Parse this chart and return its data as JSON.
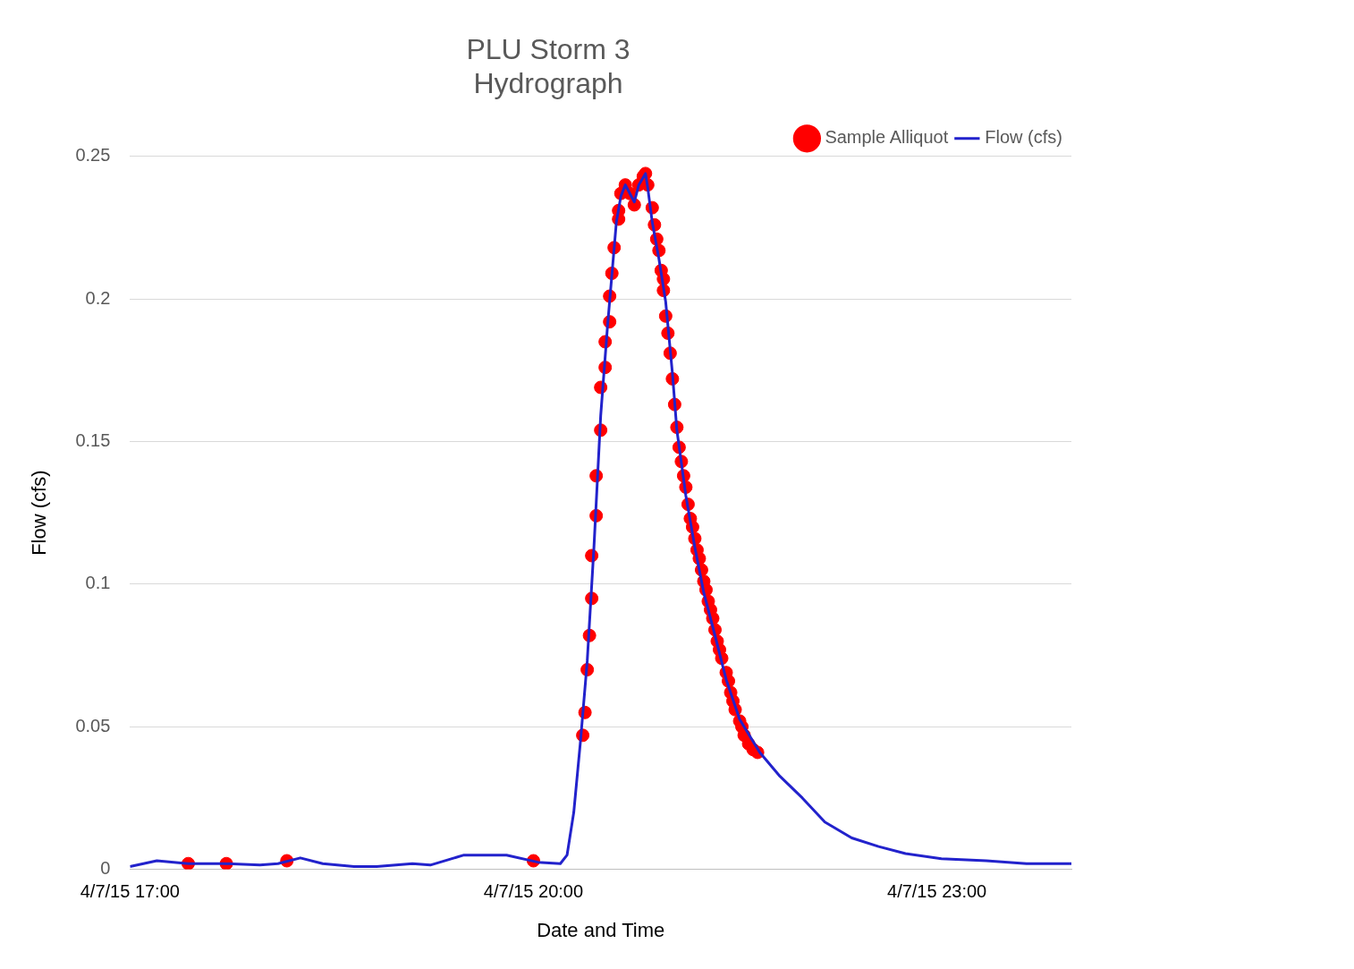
{
  "chart_data": {
    "type": "line",
    "title": "PLU Storm 3\nHydrograph",
    "xlabel": "Date and Time",
    "ylabel": "Flow (cfs)",
    "xlim": [
      "--04-07T17:00",
      "--04-08T00:00"
    ],
    "xticks": [
      {
        "value": "--04-07T17:00",
        "label": "4/7/15 17:00"
      },
      {
        "value": "--04-07T20:00",
        "label": "4/7/15 20:00"
      },
      {
        "value": "--04-07T23:00",
        "label": "4/7/15 23:00"
      }
    ],
    "ylim": [
      0,
      0.25
    ],
    "yticks": [
      0,
      0.05,
      0.1,
      0.15,
      0.2,
      0.25
    ],
    "grid": "y",
    "legend": "top right",
    "series": [
      {
        "name": "Sample Alliquot",
        "type": "scatter",
        "marker": "circle",
        "color": "#ff0000",
        "x": [
          "--04-07T17:26",
          "--04-07T17:43",
          "--04-07T18:10",
          "--04-07T20:00",
          "--04-07T20:22",
          "--04-07T20:23",
          "--04-07T20:24",
          "--04-07T20:25",
          "--04-07T20:26",
          "--04-07T20:26",
          "--04-07T20:28",
          "--04-07T20:28",
          "--04-07T20:30",
          "--04-07T20:30",
          "--04-07T20:32",
          "--04-07T20:32",
          "--04-07T20:34",
          "--04-07T20:34",
          "--04-07T20:35",
          "--04-07T20:36",
          "--04-07T20:38",
          "--04-07T20:38",
          "--04-07T20:39",
          "--04-07T20:41",
          "--04-07T20:43",
          "--04-07T20:45",
          "--04-07T20:47",
          "--04-07T20:49",
          "--04-07T20:50",
          "--04-07T20:51",
          "--04-07T20:53",
          "--04-07T20:54",
          "--04-07T20:55",
          "--04-07T20:56",
          "--04-07T20:57",
          "--04-07T20:58",
          "--04-07T20:58",
          "--04-07T20:59",
          "--04-07T21:00",
          "--04-07T21:01",
          "--04-07T21:02",
          "--04-07T21:03",
          "--04-07T21:04",
          "--04-07T21:05",
          "--04-07T21:06",
          "--04-07T21:07",
          "--04-07T21:08",
          "--04-07T21:09",
          "--04-07T21:10",
          "--04-07T21:11",
          "--04-07T21:12",
          "--04-07T21:13",
          "--04-07T21:14",
          "--04-07T21:15",
          "--04-07T21:16",
          "--04-07T21:17",
          "--04-07T21:18",
          "--04-07T21:19",
          "--04-07T21:20",
          "--04-07T21:21",
          "--04-07T21:22",
          "--04-07T21:23",
          "--04-07T21:24",
          "--04-07T21:26",
          "--04-07T21:27",
          "--04-07T21:28",
          "--04-07T21:29",
          "--04-07T21:30",
          "--04-07T21:32",
          "--04-07T21:33",
          "--04-07T21:34",
          "--04-07T21:36",
          "--04-07T21:38",
          "--04-07T21:40"
        ],
        "values": [
          0.002,
          0.002,
          0.003,
          0.003,
          0.047,
          0.055,
          0.07,
          0.082,
          0.095,
          0.11,
          0.124,
          0.138,
          0.154,
          0.169,
          0.176,
          0.185,
          0.192,
          0.201,
          0.209,
          0.218,
          0.228,
          0.231,
          0.237,
          0.24,
          0.237,
          0.233,
          0.24,
          0.243,
          0.244,
          0.24,
          0.232,
          0.226,
          0.221,
          0.217,
          0.21,
          0.207,
          0.203,
          0.194,
          0.188,
          0.181,
          0.172,
          0.163,
          0.155,
          0.148,
          0.143,
          0.138,
          0.134,
          0.128,
          0.123,
          0.12,
          0.116,
          0.112,
          0.109,
          0.105,
          0.101,
          0.098,
          0.094,
          0.091,
          0.088,
          0.084,
          0.08,
          0.077,
          0.074,
          0.069,
          0.066,
          0.062,
          0.059,
          0.056,
          0.052,
          0.05,
          0.047,
          0.044,
          0.042,
          0.041
        ]
      },
      {
        "name": "Flow (cfs)",
        "type": "line",
        "marker": "none",
        "color": "#2222cc",
        "x": [
          "--04-07T17:00",
          "--04-07T17:12",
          "--04-07T17:26",
          "--04-07T17:42",
          "--04-07T17:58",
          "--04-07T18:06",
          "--04-07T18:16",
          "--04-07T18:26",
          "--04-07T18:40",
          "--04-07T18:50",
          "--04-07T19:06",
          "--04-07T19:14",
          "--04-07T19:29",
          "--04-07T19:48",
          "--04-07T20:02",
          "--04-07T20:12",
          "--04-07T20:15",
          "--04-07T20:18",
          "--04-07T20:21",
          "--04-07T20:24",
          "--04-07T20:27",
          "--04-07T20:30",
          "--04-07T20:33",
          "--04-07T20:37",
          "--04-07T20:39",
          "--04-07T20:41",
          "--04-07T20:43",
          "--04-07T20:45",
          "--04-07T20:47",
          "--04-07T20:50",
          "--04-07T20:51",
          "--04-07T20:53",
          "--04-07T20:56",
          "--04-07T20:59",
          "--04-07T21:02",
          "--04-07T21:04",
          "--04-07T21:08",
          "--04-07T21:12",
          "--04-07T21:16",
          "--04-07T21:21",
          "--04-07T21:26",
          "--04-07T21:32",
          "--04-07T21:41",
          "--04-07T21:50",
          "--04-07T22:00",
          "--04-07T22:10",
          "--04-07T22:22",
          "--04-07T22:34",
          "--04-07T22:46",
          "--04-07T23:02",
          "--04-07T23:22",
          "--04-07T23:40",
          "--04-08T00:00"
        ],
        "values": [
          0.001,
          0.003,
          0.002,
          0.002,
          0.0015,
          0.002,
          0.004,
          0.002,
          0.001,
          0.001,
          0.002,
          0.0015,
          0.005,
          0.005,
          0.0025,
          0.002,
          0.005,
          0.02,
          0.045,
          0.073,
          0.113,
          0.159,
          0.19,
          0.227,
          0.236,
          0.24,
          0.237,
          0.234,
          0.24,
          0.244,
          0.239,
          0.227,
          0.214,
          0.199,
          0.174,
          0.154,
          0.131,
          0.113,
          0.097,
          0.082,
          0.0665,
          0.0526,
          0.041,
          0.0326,
          0.025,
          0.0166,
          0.011,
          0.008,
          0.0055,
          0.0037,
          0.003,
          0.002,
          0.002
        ]
      }
    ]
  }
}
